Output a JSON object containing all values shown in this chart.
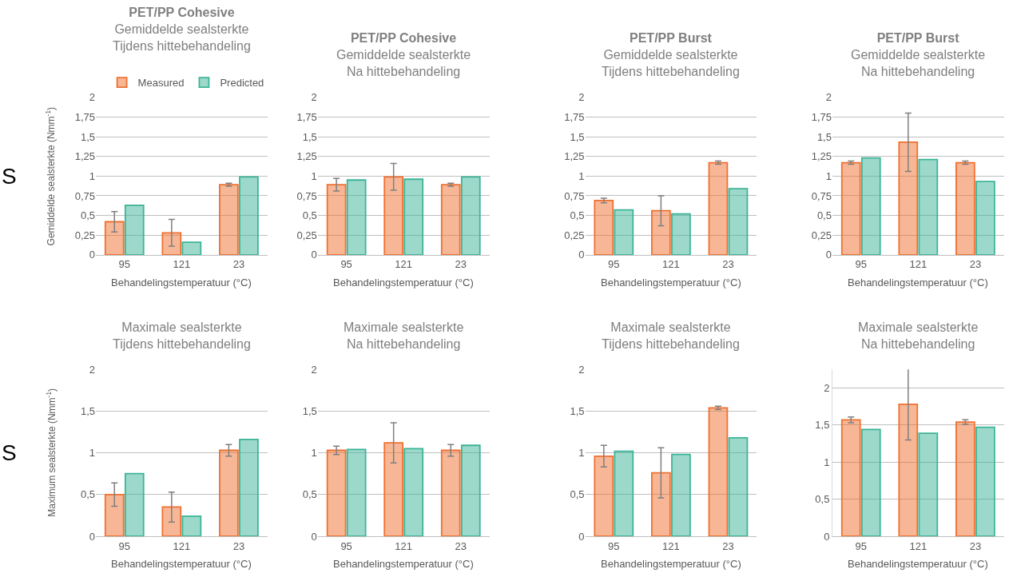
{
  "chart_data": [
    {
      "type": "bar",
      "title": "PET/PP Cohesive",
      "subtitle": "Gemiddelde sealsterkte\nTijdens hittebehandeling",
      "ylabel": "Gemiddelde sealsterkte (Nmm$^{-1}$)",
      "xlabel": "Behandelingstemperatuur (°C)",
      "annotations": [
        "S"
      ],
      "categories": [
        "95",
        "121",
        "23"
      ],
      "legend": "top",
      "grid": "y",
      "ylim": [
        0,
        2
      ],
      "yticks": [
        0,
        {
          "value": 0.25,
          "label": "0,25"
        },
        {
          "value": 0.5,
          "label": "0,5"
        },
        {
          "value": 0.75,
          "label": "0,75"
        },
        1,
        {
          "value": 1.25,
          "label": "1,25"
        },
        {
          "value": 1.5,
          "label": "1,5"
        },
        {
          "value": 1.75,
          "label": "1,75"
        },
        2
      ],
      "series": [
        {
          "name": "Measured",
          "color": "#f07030",
          "values": [
            0.42,
            0.28,
            0.89
          ],
          "errors": [
            0.13,
            0.17,
            0.02
          ]
        },
        {
          "name": "Predicted",
          "color": "#3cb497",
          "values": [
            0.63,
            0.16,
            0.99
          ]
        }
      ]
    },
    {
      "type": "bar",
      "title": "PET/PP Cohesive",
      "subtitle": "Gemiddelde sealsterkte\nNa hittebehandeling",
      "xlabel": "Behandelingstemperatuur (°C)",
      "categories": [
        "95",
        "121",
        "23"
      ],
      "grid": "y",
      "ylim": [
        0,
        2
      ],
      "yticks": [
        0,
        {
          "value": 0.25,
          "label": "0,25"
        },
        {
          "value": 0.5,
          "label": "0,5"
        },
        {
          "value": 0.75,
          "label": "0,75"
        },
        1,
        {
          "value": 1.25,
          "label": "1,25"
        },
        {
          "value": 1.5,
          "label": "1,5"
        },
        {
          "value": 1.75,
          "label": "1,75"
        },
        2
      ],
      "series": [
        {
          "color": "#f07030",
          "values": [
            0.89,
            0.99,
            0.89
          ],
          "errors": [
            0.08,
            0.17,
            0.02
          ]
        },
        {
          "color": "#3cb497",
          "values": [
            0.95,
            0.96,
            0.99
          ]
        }
      ]
    },
    {
      "type": "bar",
      "title": "PET/PP Burst",
      "subtitle": "Gemiddelde sealsterkte\nTijdens hittebehandeling",
      "xlabel": "Behandelingstemperatuur (°C)",
      "categories": [
        "95",
        "121",
        "23"
      ],
      "grid": "y",
      "ylim": [
        0,
        2
      ],
      "yticks": [
        0,
        {
          "value": 0.25,
          "label": "0,25"
        },
        {
          "value": 0.5,
          "label": "0,5"
        },
        {
          "value": 0.75,
          "label": "0,75"
        },
        1,
        {
          "value": 1.25,
          "label": "1,25"
        },
        {
          "value": 1.5,
          "label": "1,5"
        },
        {
          "value": 1.75,
          "label": "1,75"
        },
        2
      ],
      "series": [
        {
          "color": "#f07030",
          "values": [
            0.69,
            0.56,
            1.17
          ],
          "errors": [
            0.03,
            0.19,
            0.02
          ]
        },
        {
          "color": "#3cb497",
          "values": [
            0.57,
            0.52,
            0.84
          ]
        }
      ]
    },
    {
      "type": "bar",
      "title": "PET/PP Burst",
      "subtitle": "Gemiddelde sealsterkte\nNa hittebehandeling",
      "xlabel": "Behandelingstemperatuur (°C)",
      "categories": [
        "95",
        "121",
        "23"
      ],
      "grid": "y",
      "ylim": [
        0,
        2
      ],
      "yticks": [
        0,
        {
          "value": 0.25,
          "label": "0,25"
        },
        {
          "value": 0.5,
          "label": "0,5"
        },
        {
          "value": 0.75,
          "label": "0,75"
        },
        1,
        {
          "value": 1.25,
          "label": "1,25"
        },
        {
          "value": 1.5,
          "label": "1,5"
        },
        {
          "value": 1.75,
          "label": "1,75"
        },
        2
      ],
      "series": [
        {
          "color": "#f07030",
          "values": [
            1.17,
            1.43,
            1.17
          ],
          "errors": [
            0.02,
            0.37,
            0.02
          ]
        },
        {
          "color": "#3cb497",
          "values": [
            1.23,
            1.21,
            0.93
          ]
        }
      ]
    },
    {
      "type": "bar",
      "subtitle": "Maximale sealsterkte\nTijdens hittebehandeling",
      "ylabel": "Maximum sealsterkte (Nmm$^{-1}$)",
      "xlabel": "Behandelingstemperatuur (°C)",
      "annotations": [
        "S"
      ],
      "categories": [
        "95",
        "121",
        "23"
      ],
      "grid": "y",
      "ylim": [
        0,
        2
      ],
      "yticks": [
        0,
        {
          "value": 0.5,
          "label": "0,5"
        },
        1,
        {
          "value": 1.5,
          "label": "1,5"
        },
        2
      ],
      "series": [
        {
          "color": "#f07030",
          "values": [
            0.5,
            0.35,
            1.03
          ],
          "errors": [
            0.14,
            0.18,
            0.07
          ]
        },
        {
          "color": "#3cb497",
          "values": [
            0.75,
            0.24,
            1.16
          ]
        }
      ]
    },
    {
      "type": "bar",
      "subtitle": "Maximale sealsterkte\nNa hittebehandeling",
      "xlabel": "Behandelingstemperatuur (°C)",
      "categories": [
        "95",
        "121",
        "23"
      ],
      "grid": "y",
      "ylim": [
        0,
        2
      ],
      "yticks": [
        0,
        {
          "value": 0.5,
          "label": "0,5"
        },
        1,
        {
          "value": 1.5,
          "label": "1,5"
        },
        2
      ],
      "series": [
        {
          "color": "#f07030",
          "values": [
            1.03,
            1.12,
            1.03
          ],
          "errors": [
            0.05,
            0.24,
            0.07
          ]
        },
        {
          "color": "#3cb497",
          "values": [
            1.04,
            1.05,
            1.09
          ]
        }
      ]
    },
    {
      "type": "bar",
      "subtitle": "Maximale sealsterkte\nTijdens hittebehandeling",
      "xlabel": "Behandelingstemperatuur (°C)",
      "categories": [
        "95",
        "121",
        "23"
      ],
      "grid": "y",
      "ylim": [
        0,
        2
      ],
      "yticks": [
        0,
        {
          "value": 0.5,
          "label": "0,5"
        },
        1,
        {
          "value": 1.5,
          "label": "1,5"
        },
        2
      ],
      "series": [
        {
          "color": "#f07030",
          "values": [
            0.96,
            0.76,
            1.54
          ],
          "errors": [
            0.13,
            0.3,
            0.02
          ]
        },
        {
          "color": "#3cb497",
          "values": [
            1.02,
            0.98,
            1.18
          ]
        }
      ]
    },
    {
      "type": "bar",
      "subtitle": "Maximale sealsterkte\nNa hittebehandeling",
      "xlabel": "Behandelingstemperatuur (°C)",
      "categories": [
        "95",
        "121",
        "23"
      ],
      "grid": "y",
      "ylim": [
        0,
        2.25
      ],
      "yticks": [
        0,
        {
          "value": 0.5,
          "label": "0,5"
        },
        1,
        {
          "value": 1.5,
          "label": "1,5"
        },
        2
      ],
      "series": [
        {
          "color": "#f07030",
          "values": [
            1.57,
            1.78,
            1.54
          ],
          "errors": [
            0.04,
            0.48,
            0.03
          ]
        },
        {
          "color": "#3cb497",
          "values": [
            1.44,
            1.39,
            1.47
          ]
        }
      ]
    }
  ]
}
